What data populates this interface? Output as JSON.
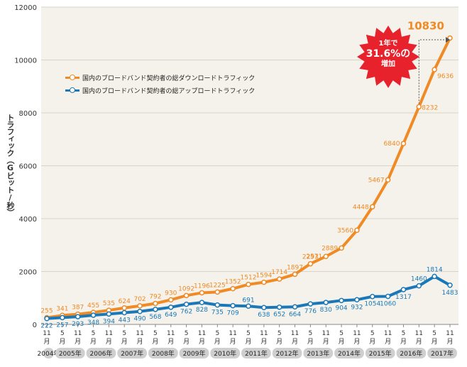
{
  "chart_data": {
    "type": "line",
    "ylabel": "トラフィック（Gビット/秒）",
    "ylim": [
      0,
      12000
    ],
    "yticks": [
      "0",
      "2000",
      "4000",
      "6000",
      "8000",
      "10000",
      "12000"
    ],
    "x": [
      "11\n月",
      "5\n月",
      "11\n月",
      "5\n月",
      "11\n月",
      "5\n月",
      "11\n月",
      "5\n月",
      "11\n月",
      "5\n月",
      "11\n月",
      "5\n月",
      "11\n月",
      "5\n月",
      "11\n月",
      "5\n月",
      "11\n月",
      "5\n月",
      "11\n月",
      "5\n月",
      "11\n月",
      "5\n月",
      "11\n月",
      "5\n月",
      "11\n月",
      "5\n月",
      "11\n月"
    ],
    "x_month_labels": [
      "11",
      "5",
      "11",
      "5",
      "11",
      "5",
      "11",
      "5",
      "11",
      "5",
      "11",
      "5",
      "11",
      "5",
      "11",
      "5",
      "11",
      "5",
      "11",
      "5",
      "11",
      "5",
      "11",
      "5",
      "11",
      "5",
      "11"
    ],
    "month_suffix": "月",
    "years": [
      "2004年",
      "2005年",
      "2006年",
      "2007年",
      "2008年",
      "2009年",
      "2010年",
      "2011年",
      "2012年",
      "2013年",
      "2014年",
      "2015年",
      "2016年",
      "2017年"
    ],
    "series": [
      {
        "name": "国内のブロードバンド契約者の総ダウンロードトラフィック",
        "color": "#f08a24",
        "values": [
          255,
          341,
          387,
          455,
          535,
          624,
          702,
          792,
          930,
          1092,
          1196,
          1225,
          1352,
          1512,
          1594,
          1714,
          1897,
          2293,
          2571,
          2889,
          3560,
          4448,
          5467,
          6840,
          8232,
          9636,
          10830
        ],
        "labels": [
          "255",
          "341",
          "387",
          "455",
          "535",
          "624",
          "702",
          "792",
          "930",
          "1092",
          "1196",
          "1225",
          "1352",
          "1512",
          "1594",
          "1714",
          "1897",
          "2293",
          "2571",
          "2889",
          "3560",
          "4448",
          "5467",
          "6840",
          "8232",
          "9636",
          "10830"
        ]
      },
      {
        "name": "国内のブロードバンド契約者の総アップロードトラフィック",
        "color": "#1a78b8",
        "values": [
          222,
          257,
          293,
          348,
          394,
          443,
          490,
          568,
          649,
          762,
          828,
          735,
          709,
          691,
          638,
          652,
          664,
          776,
          830,
          904,
          932,
          1054,
          1060,
          1317,
          1460,
          1814,
          1483
        ],
        "labels": [
          "222",
          "257",
          "293",
          "348",
          "394",
          "443",
          "490",
          "568",
          "649",
          "762",
          "828",
          "735",
          "709",
          "691",
          "638",
          "652",
          "664",
          "776",
          "830",
          "904",
          "932",
          "1054",
          "1060",
          "1317",
          "1460",
          "1814",
          "1483"
        ]
      }
    ],
    "annotation": {
      "line1": "1年で",
      "line2": "31.6%の",
      "line3": "増加",
      "badge_color": "#e8222d"
    }
  },
  "legend": {
    "download": "国内のブロードバンド契約者の総ダウンロードトラフィック",
    "upload": "国内のブロードバンド契約者の総アップロードトラフィック"
  }
}
